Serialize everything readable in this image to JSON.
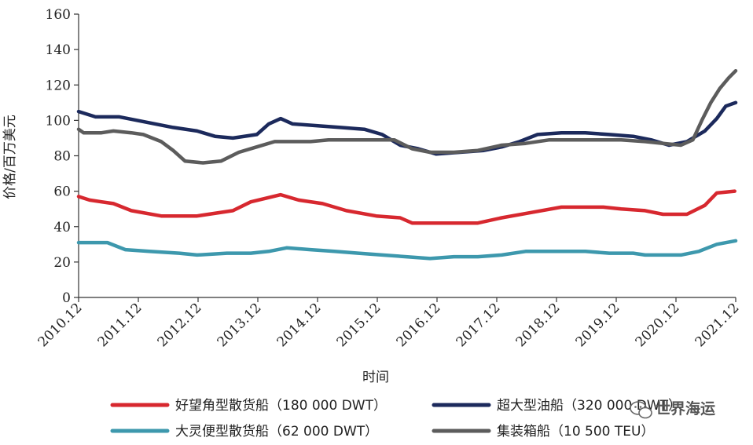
{
  "watermark": {
    "text": "世界海运",
    "icon": "wechat-icon"
  },
  "chart_data": {
    "type": "line",
    "title": "",
    "xlabel": "时间",
    "ylabel": "价格/百万美元",
    "ylim": [
      0,
      160
    ],
    "yticks": [
      0,
      20,
      40,
      60,
      80,
      100,
      120,
      140,
      160
    ],
    "x_range": [
      2010.917,
      2021.917
    ],
    "xtick_labels": [
      "2010.12",
      "2011.12",
      "2012.12",
      "2013.12",
      "2014.12",
      "2015.12",
      "2016.12",
      "2017.12",
      "2018.12",
      "2019.12",
      "2020.12",
      "2021.12"
    ],
    "grid": false,
    "legend_position": "bottom",
    "series": [
      {
        "name": "好望角型散货船（180 000 DWT）",
        "color": "#d7282f",
        "points": [
          [
            2010.917,
            57
          ],
          [
            2011.1,
            55
          ],
          [
            2011.5,
            53
          ],
          [
            2011.8,
            49
          ],
          [
            2012.3,
            46
          ],
          [
            2012.9,
            46
          ],
          [
            2013.5,
            49
          ],
          [
            2013.8,
            54
          ],
          [
            2014.3,
            58
          ],
          [
            2014.6,
            55
          ],
          [
            2015.0,
            53
          ],
          [
            2015.4,
            49
          ],
          [
            2015.9,
            46
          ],
          [
            2016.3,
            45
          ],
          [
            2016.5,
            42
          ],
          [
            2017.0,
            42
          ],
          [
            2017.6,
            42
          ],
          [
            2018.0,
            45
          ],
          [
            2018.5,
            48
          ],
          [
            2019.0,
            51
          ],
          [
            2019.7,
            51
          ],
          [
            2020.0,
            50
          ],
          [
            2020.4,
            49
          ],
          [
            2020.7,
            47
          ],
          [
            2021.1,
            47
          ],
          [
            2021.4,
            52
          ],
          [
            2021.6,
            59
          ],
          [
            2021.9,
            60
          ]
        ]
      },
      {
        "name": "超大型油船（320 000 DWT）",
        "color": "#1c2a5c",
        "points": [
          [
            2010.917,
            105
          ],
          [
            2011.2,
            102
          ],
          [
            2011.6,
            102
          ],
          [
            2011.9,
            100
          ],
          [
            2012.2,
            98
          ],
          [
            2012.5,
            96
          ],
          [
            2012.9,
            94
          ],
          [
            2013.2,
            91
          ],
          [
            2013.5,
            90
          ],
          [
            2013.9,
            92
          ],
          [
            2014.1,
            98
          ],
          [
            2014.3,
            101
          ],
          [
            2014.5,
            98
          ],
          [
            2014.9,
            97
          ],
          [
            2015.3,
            96
          ],
          [
            2015.7,
            95
          ],
          [
            2016.0,
            92
          ],
          [
            2016.3,
            86
          ],
          [
            2016.6,
            84
          ],
          [
            2016.9,
            81
          ],
          [
            2017.3,
            82
          ],
          [
            2017.7,
            83
          ],
          [
            2018.0,
            85
          ],
          [
            2018.3,
            88
          ],
          [
            2018.6,
            92
          ],
          [
            2019.0,
            93
          ],
          [
            2019.4,
            93
          ],
          [
            2019.8,
            92
          ],
          [
            2020.2,
            91
          ],
          [
            2020.5,
            89
          ],
          [
            2020.8,
            86
          ],
          [
            2021.1,
            88
          ],
          [
            2021.4,
            94
          ],
          [
            2021.6,
            101
          ],
          [
            2021.75,
            108
          ],
          [
            2021.917,
            110
          ]
        ]
      },
      {
        "name": "大灵便型散货船（62 000 DWT）",
        "color": "#3d98ad",
        "points": [
          [
            2010.917,
            31
          ],
          [
            2011.4,
            31
          ],
          [
            2011.7,
            27
          ],
          [
            2012.1,
            26
          ],
          [
            2012.6,
            25
          ],
          [
            2012.9,
            24
          ],
          [
            2013.4,
            25
          ],
          [
            2013.8,
            25
          ],
          [
            2014.1,
            26
          ],
          [
            2014.4,
            28
          ],
          [
            2014.8,
            27
          ],
          [
            2015.2,
            26
          ],
          [
            2015.6,
            25
          ],
          [
            2016.0,
            24
          ],
          [
            2016.4,
            23
          ],
          [
            2016.8,
            22
          ],
          [
            2017.2,
            23
          ],
          [
            2017.6,
            23
          ],
          [
            2018.0,
            24
          ],
          [
            2018.4,
            26
          ],
          [
            2018.8,
            26
          ],
          [
            2019.4,
            26
          ],
          [
            2019.8,
            25
          ],
          [
            2020.2,
            25
          ],
          [
            2020.4,
            24
          ],
          [
            2021.0,
            24
          ],
          [
            2021.3,
            26
          ],
          [
            2021.6,
            30
          ],
          [
            2021.917,
            32
          ]
        ]
      },
      {
        "name": "集装箱船（10 500 TEU）",
        "color": "#5c5c5c",
        "points": [
          [
            2010.917,
            95
          ],
          [
            2011.0,
            93
          ],
          [
            2011.3,
            93
          ],
          [
            2011.5,
            94
          ],
          [
            2011.8,
            93
          ],
          [
            2012.0,
            92
          ],
          [
            2012.3,
            88
          ],
          [
            2012.5,
            83
          ],
          [
            2012.7,
            77
          ],
          [
            2013.0,
            76
          ],
          [
            2013.3,
            77
          ],
          [
            2013.6,
            82
          ],
          [
            2013.9,
            85
          ],
          [
            2014.2,
            88
          ],
          [
            2014.5,
            88
          ],
          [
            2014.8,
            88
          ],
          [
            2015.1,
            89
          ],
          [
            2015.5,
            89
          ],
          [
            2015.9,
            89
          ],
          [
            2016.2,
            89
          ],
          [
            2016.5,
            84
          ],
          [
            2016.8,
            82
          ],
          [
            2017.2,
            82
          ],
          [
            2017.6,
            83
          ],
          [
            2018.0,
            86
          ],
          [
            2018.4,
            87
          ],
          [
            2018.8,
            89
          ],
          [
            2019.2,
            89
          ],
          [
            2019.6,
            89
          ],
          [
            2020.0,
            89
          ],
          [
            2020.4,
            88
          ],
          [
            2020.7,
            87
          ],
          [
            2021.0,
            86
          ],
          [
            2021.2,
            89
          ],
          [
            2021.35,
            100
          ],
          [
            2021.5,
            110
          ],
          [
            2021.65,
            118
          ],
          [
            2021.8,
            124
          ],
          [
            2021.917,
            128
          ]
        ]
      }
    ]
  }
}
